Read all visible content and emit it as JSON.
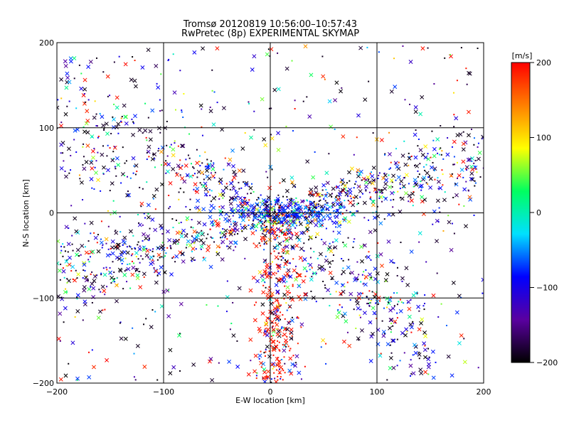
{
  "chart_data": {
    "type": "scatter",
    "title": "Tromsø 20120819 10:56:00–10:57:43",
    "subtitle": "RwPretec (8p) EXPERIMENTAL SKYMAP",
    "xlabel": "E-W location [km]",
    "ylabel": "N-S location [km]",
    "xlim": [
      -200,
      200
    ],
    "ylim": [
      -200,
      200
    ],
    "x_ticks": [
      -200,
      -100,
      0,
      100,
      200
    ],
    "y_ticks": [
      -200,
      -100,
      0,
      100,
      200
    ],
    "grid": true,
    "markers": [
      "dot",
      "cross"
    ],
    "colorbar": {
      "label": "[m/s]",
      "range": [
        -200,
        200
      ],
      "ticks": [
        -200,
        -100,
        0,
        100,
        200
      ],
      "colors": [
        "#000000",
        "#5a00a0",
        "#0000ff",
        "#00e0ff",
        "#00ff60",
        "#ffff00",
        "#ff8000",
        "#ff0000"
      ]
    },
    "note": "Several thousand scattered meteor echoes; densest along a band from (-200,-110) through the origin to (200,20), with a vertical streak near x≈0 extending to y≈-200 and a diagonal spread toward the upper-left."
  }
}
